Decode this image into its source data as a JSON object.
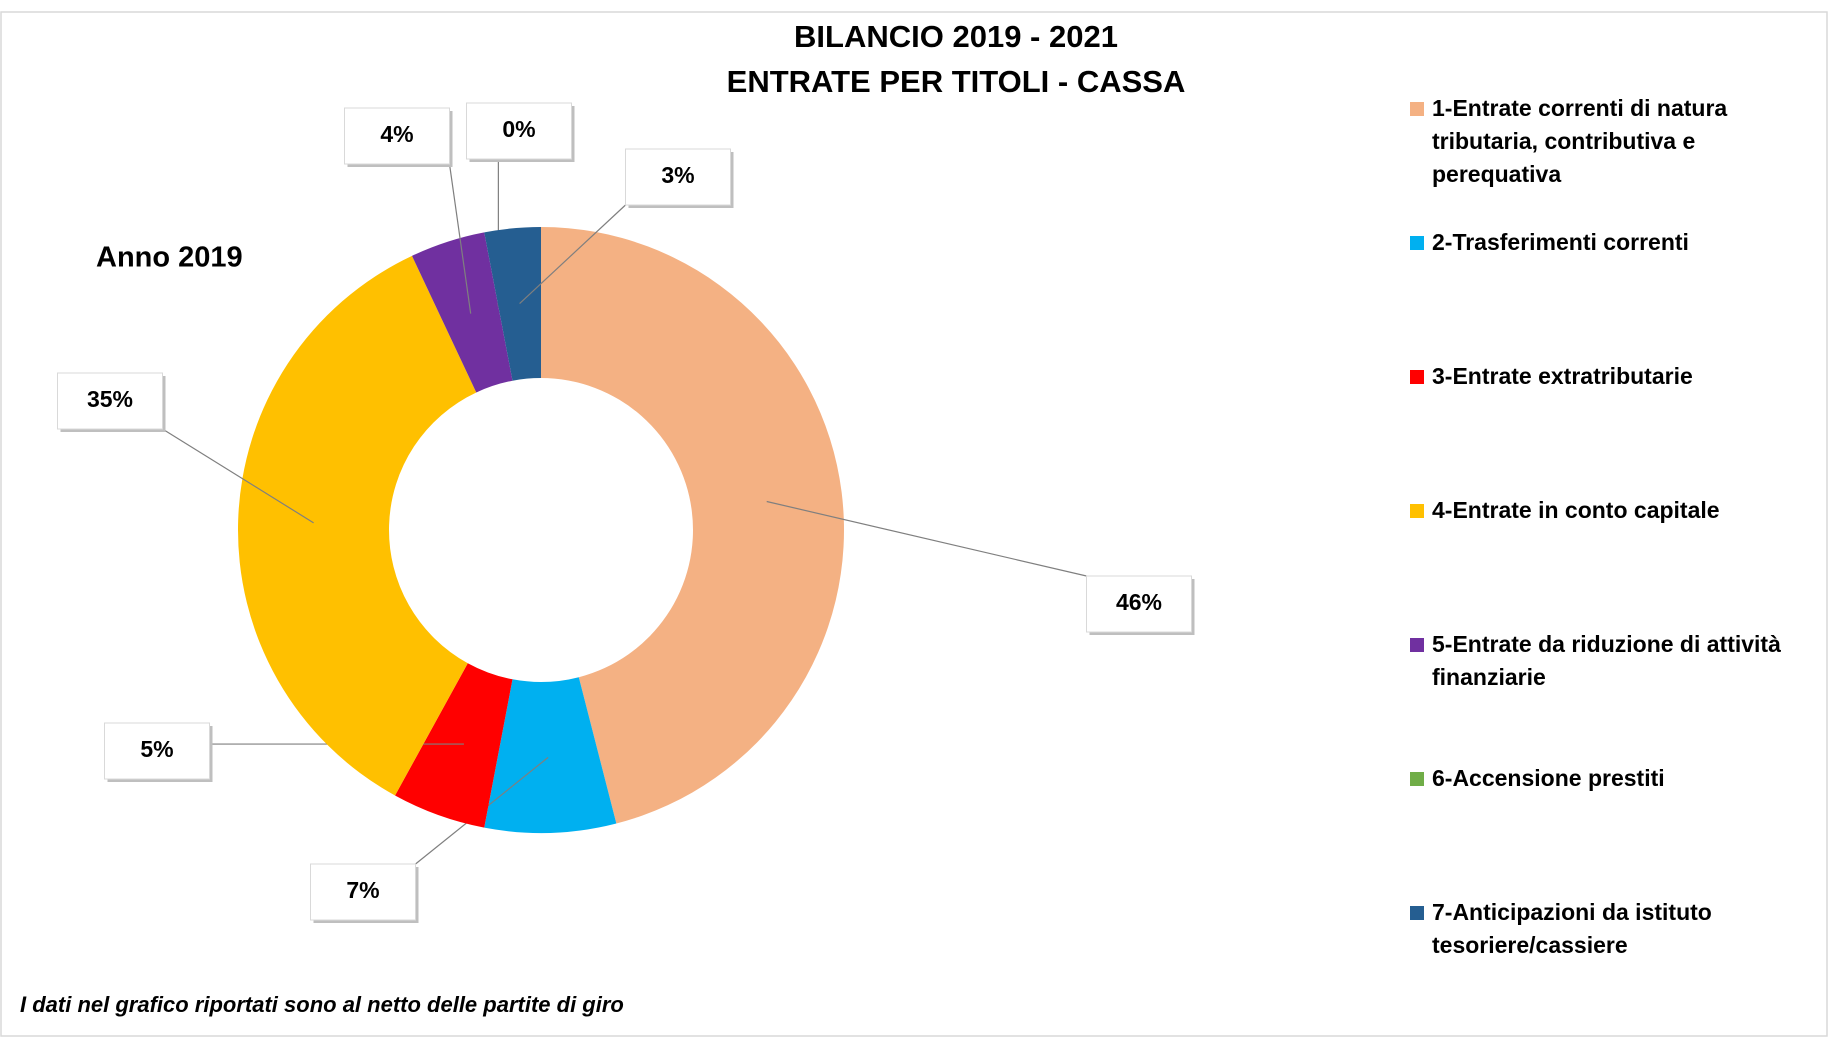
{
  "chart_data": {
    "type": "donut",
    "title": [
      "BILANCIO 2019 - 2021",
      "ENTRATE PER TITOLI - CASSA"
    ],
    "subtitle": "Anno 2019",
    "footnote": "I dati nel grafico riportati sono al netto delle partite di giro",
    "categories": [
      "1-Entrate correnti di natura tributaria, contributiva e perequativa",
      "2-Trasferimenti correnti",
      "3-Entrate extratributarie",
      "4-Entrate in conto capitale",
      "5-Entrate da riduzione di attività finanziarie",
      "6-Accensione prestiti",
      "7-Anticipazioni da istituto tesoriere/cassiere"
    ],
    "values": [
      46,
      7,
      5,
      35,
      4,
      0,
      3
    ],
    "value_labels": [
      "46%",
      "7%",
      "5%",
      "35%",
      "4%",
      "0%",
      "3%"
    ],
    "colors": [
      "#f4b183",
      "#00b0f0",
      "#ff0000",
      "#ffc000",
      "#7030a0",
      "#70ad47",
      "#255e91"
    ],
    "legend": "right"
  }
}
